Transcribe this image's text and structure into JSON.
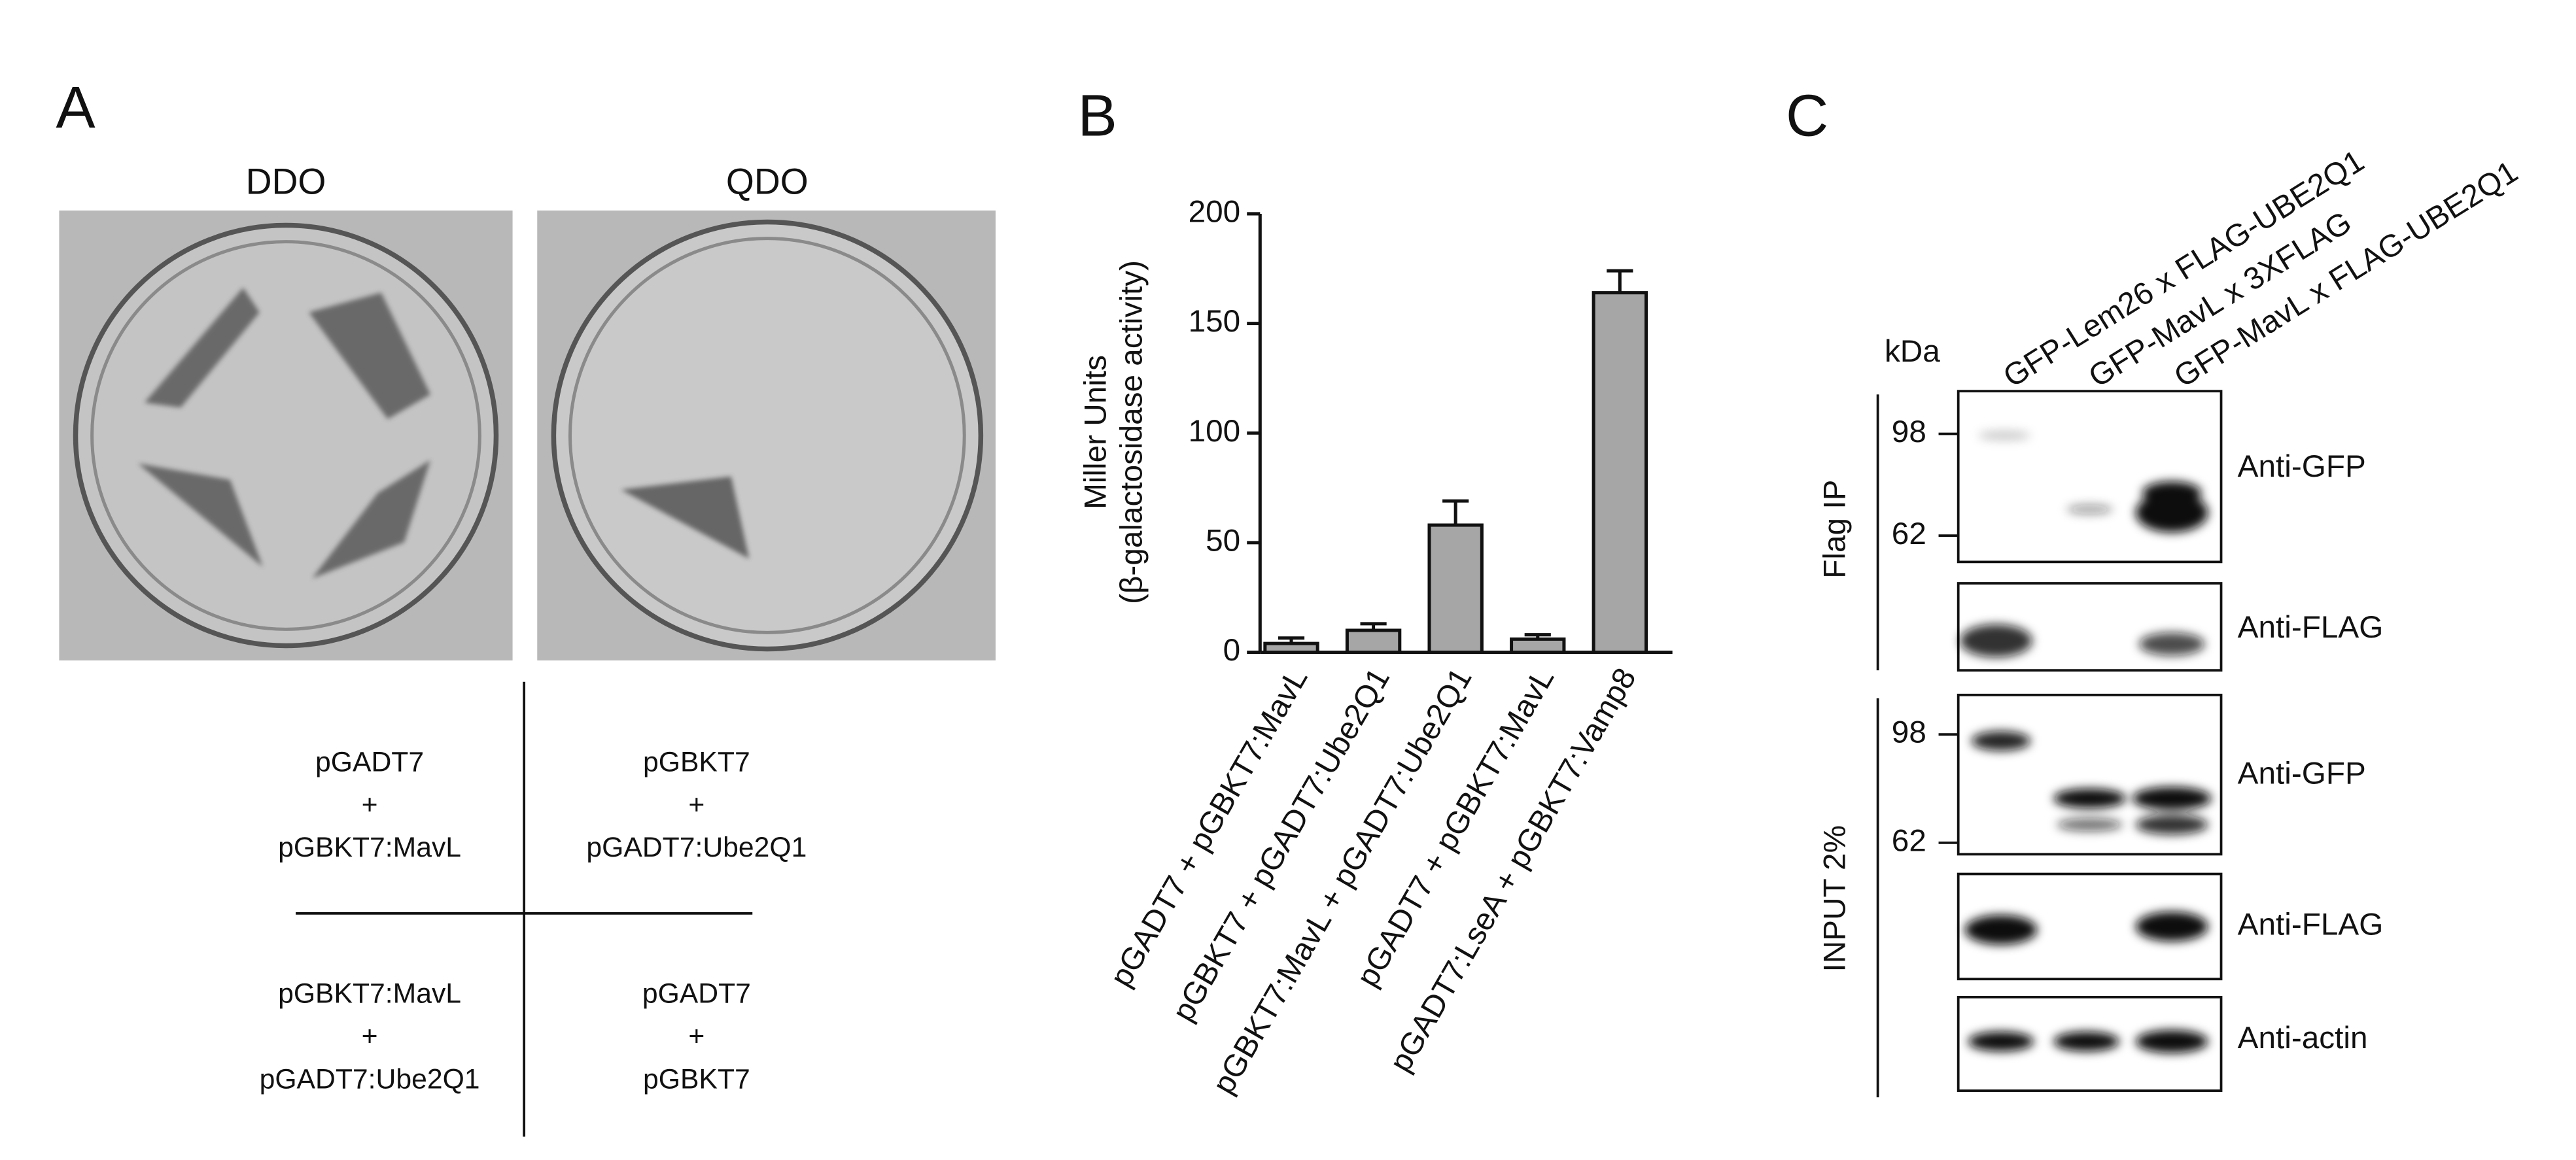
{
  "panel_a": {
    "label": "A",
    "plates": [
      "DDO",
      "QDO"
    ],
    "quadrants": [
      [
        "pGADT7",
        "+",
        "pGBKT7:MavL"
      ],
      [
        "pGBKT7",
        "+",
        "pGADT7:Ube2Q1"
      ],
      [
        "pGBKT7:MavL",
        "+",
        "pGADT7:Ube2Q1"
      ],
      [
        "pGADT7",
        "+",
        "pGBKT7"
      ]
    ]
  },
  "chart_data": {
    "type": "bar",
    "label": "B",
    "ylabel": [
      "Miller Units",
      "(β-galactosidase activity)"
    ],
    "categories": [
      "pGADT7 + pGBKT7:MavL",
      "pGBKT7 + pGADT7:Ube2Q1",
      "pGBKT7:MavL + pGADT7:Ube2Q1",
      "pGADT7 + pGBKT7:MavL",
      "pGADT7:LseA + pGBKT7:Vamp8"
    ],
    "values": [
      4,
      10,
      58,
      6,
      164
    ],
    "errors": [
      2.5,
      3,
      11,
      2,
      10
    ],
    "color": "#a6a6a6",
    "ylim": [
      0,
      200
    ],
    "yticks": [
      0,
      50,
      100,
      150,
      200
    ]
  },
  "panel_c": {
    "label": "C",
    "unit": "kDa",
    "lanes": [
      "GFP-Lem26 x FLAG-UBE2Q1",
      "GFP-MavL x 3XFLAG",
      "GFP-MavL x FLAG-UBE2Q1"
    ],
    "groups": [
      "Flag IP",
      "INPUT 2%"
    ],
    "markers": [
      "98",
      "62",
      "98",
      "62"
    ],
    "blots": [
      "Anti-GFP",
      "Anti-FLAG",
      "Anti-GFP",
      "Anti-FLAG",
      "Anti-actin"
    ]
  }
}
